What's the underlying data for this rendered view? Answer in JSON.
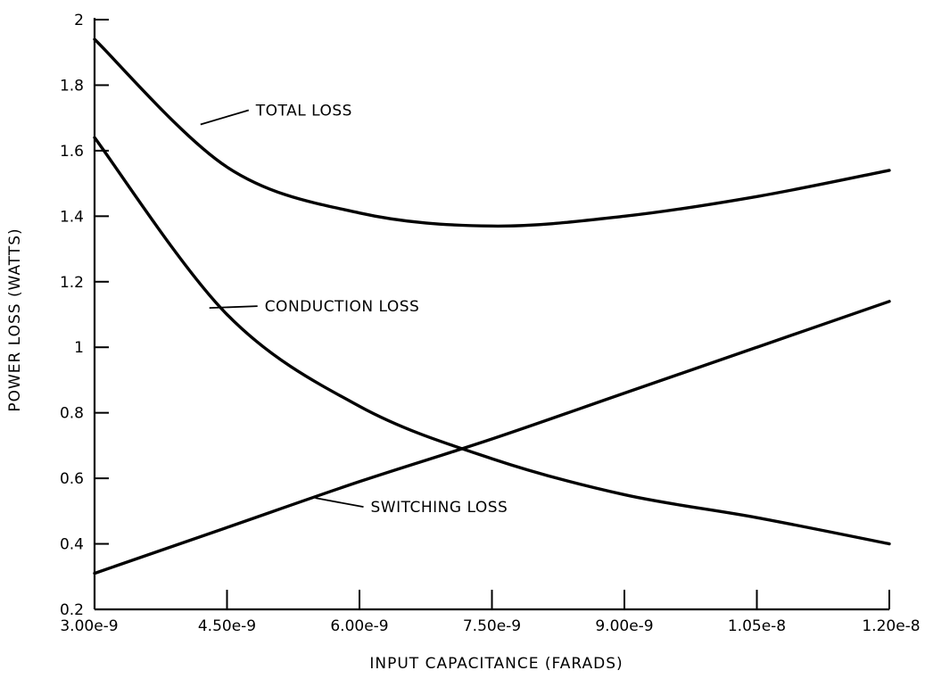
{
  "chart_data": {
    "type": "line",
    "title": "",
    "xlabel": "INPUT CAPACITANCE (FARADS)",
    "ylabel": "POWER LOSS (WATTS)",
    "xlim": [
      3e-09,
      1.2e-08
    ],
    "ylim": [
      0.2,
      2.0
    ],
    "grid": false,
    "x_ticks": [
      3e-09,
      4.5e-09,
      6e-09,
      7.5e-09,
      9e-09,
      1.05e-08,
      1.2e-08
    ],
    "x_tick_labels": [
      "3.00e-9",
      "4.50e-9",
      "6.00e-9",
      "7.50e-9",
      "9.00e-9",
      "1.05e-8",
      "1.20e-8"
    ],
    "y_ticks": [
      0.2,
      0.4,
      0.6,
      0.8,
      1.0,
      1.2,
      1.4,
      1.6,
      1.8,
      2.0
    ],
    "y_tick_labels": [
      "0.2",
      "0.4",
      "0.6",
      "0.8",
      "1",
      "1.2",
      "1.4",
      "1.6",
      "1.8",
      "2"
    ],
    "x": [
      3e-09,
      4.5e-09,
      6e-09,
      7.5e-09,
      9e-09,
      1.05e-08,
      1.2e-08
    ],
    "series": [
      {
        "name": "TOTAL LOSS",
        "values": [
          1.94,
          1.55,
          1.41,
          1.37,
          1.4,
          1.46,
          1.54
        ],
        "label_at": {
          "x": 4.2e-09,
          "y": 1.68
        }
      },
      {
        "name": "CONDUCTION LOSS",
        "values": [
          1.64,
          1.1,
          0.82,
          0.66,
          0.55,
          0.48,
          0.4
        ],
        "label_at": {
          "x": 4.3e-09,
          "y": 1.12
        }
      },
      {
        "name": "SWITCHING LOSS",
        "values": [
          0.31,
          0.45,
          0.59,
          0.72,
          0.86,
          1.0,
          1.14
        ],
        "label_at": {
          "x": 5.5e-09,
          "y": 0.54
        }
      }
    ]
  }
}
